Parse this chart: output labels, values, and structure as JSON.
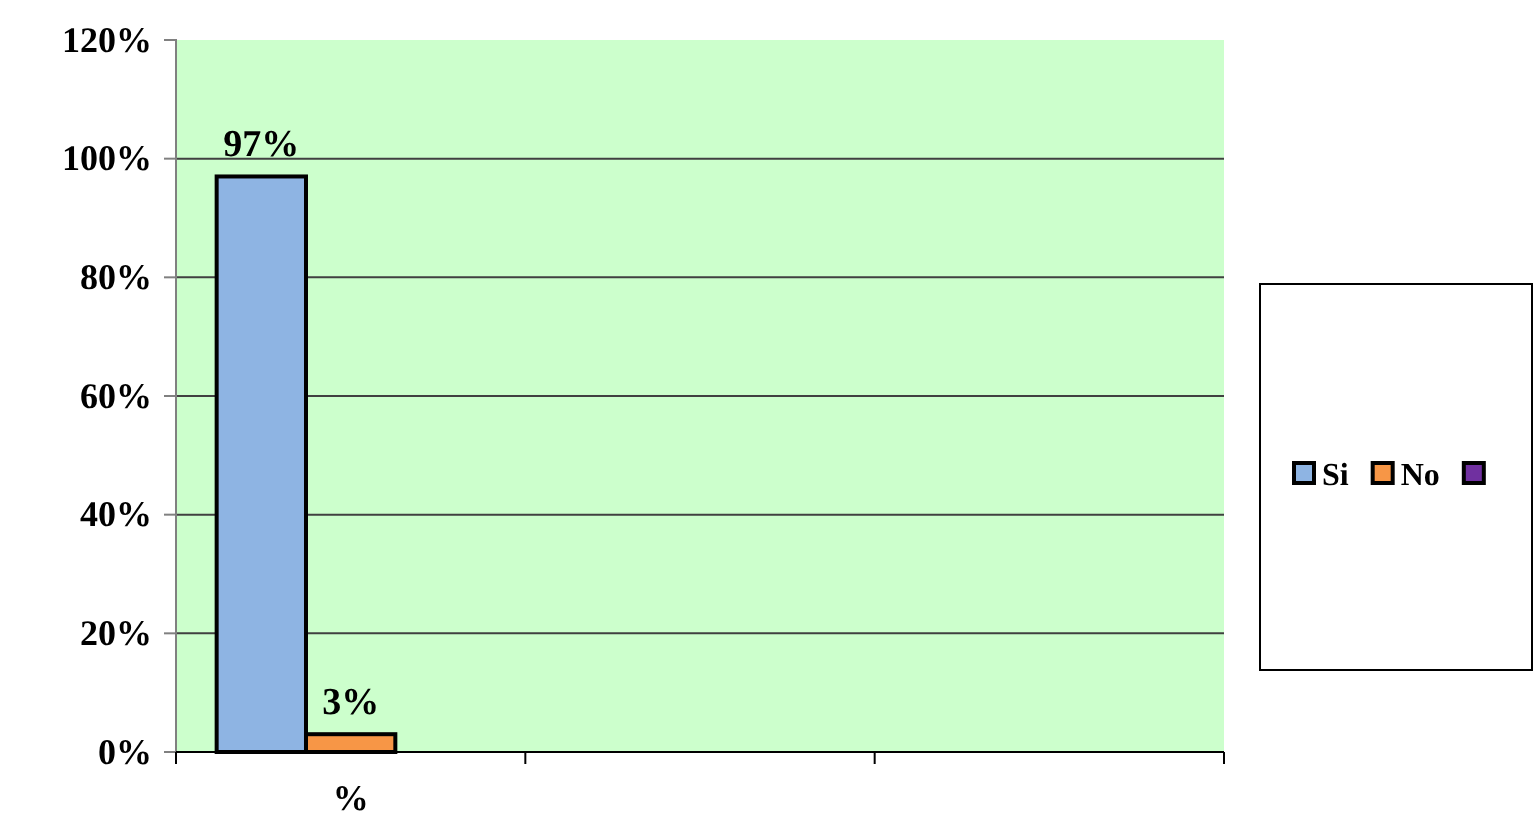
{
  "chart_data": {
    "type": "bar",
    "categories": [
      "%",
      null,
      null
    ],
    "series": [
      {
        "name": "Si",
        "color": "#8eb4e3",
        "values": [
          97,
          null,
          null
        ],
        "value_labels": [
          "97%",
          null,
          null
        ]
      },
      {
        "name": "No",
        "color": "#f79646",
        "values": [
          3,
          null,
          null
        ],
        "value_labels": [
          "3%",
          null,
          null
        ]
      },
      {
        "color": "#7030a0",
        "values": [
          null,
          null,
          null
        ]
      }
    ],
    "ylim": [
      0,
      120
    ],
    "yticks": [
      {
        "value": 0,
        "label": "0%"
      },
      {
        "value": 20,
        "label": "20%"
      },
      {
        "value": 40,
        "label": "40%"
      },
      {
        "value": 60,
        "label": "60%"
      },
      {
        "value": 80,
        "label": "80%"
      },
      {
        "value": 100,
        "label": "100%"
      },
      {
        "value": 120,
        "label": "120%"
      }
    ],
    "grid": "y",
    "legend": "right"
  }
}
